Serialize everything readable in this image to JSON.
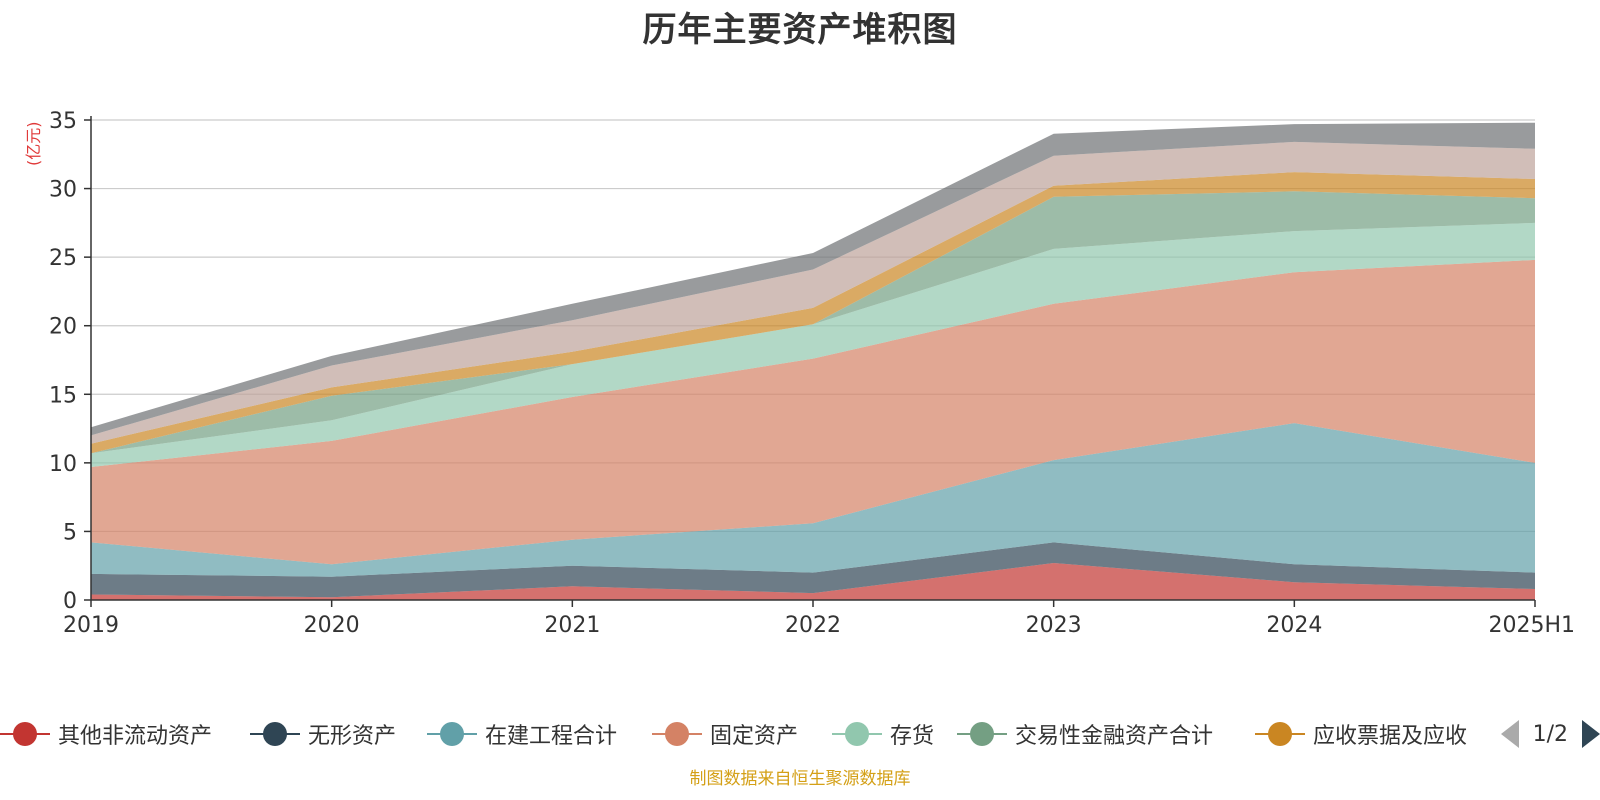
{
  "footer": "制图数据来自恒生聚源数据库",
  "legend_pager": "1/2",
  "chart_data": {
    "type": "area",
    "stacked": true,
    "title": "历年主要资产堆积图",
    "ylabel": "(亿元)",
    "ylim": [
      0,
      35
    ],
    "yticks": [
      0,
      5,
      10,
      15,
      20,
      25,
      30,
      35
    ],
    "grid": true,
    "legend_position": "bottom",
    "categories": [
      "2019",
      "2020",
      "2021",
      "2022",
      "2023",
      "2024",
      "2025H1"
    ],
    "series": [
      {
        "name": "其他非流动资产",
        "color": "#c23531",
        "values": [
          0.4,
          0.2,
          1.0,
          0.5,
          2.7,
          1.3,
          0.8
        ]
      },
      {
        "name": "无形资产",
        "color": "#2f4554",
        "values": [
          1.5,
          1.5,
          1.5,
          1.5,
          1.5,
          1.3,
          1.2
        ]
      },
      {
        "name": "在建工程合计",
        "color": "#61a0a8",
        "values": [
          2.3,
          0.9,
          1.9,
          3.6,
          6.0,
          10.3,
          8.0
        ]
      },
      {
        "name": "固定资产",
        "color": "#d48265",
        "values": [
          5.5,
          9.0,
          10.4,
          12.0,
          11.4,
          11.0,
          14.8
        ]
      },
      {
        "name": "存货",
        "color": "#91c7ae",
        "values": [
          1.0,
          1.5,
          2.4,
          2.5,
          4.0,
          3.0,
          2.7
        ]
      },
      {
        "name": "交易性金融资产合计",
        "color": "#749f83",
        "values": [
          0.0,
          1.8,
          0.0,
          0.0,
          3.8,
          2.9,
          1.8
        ]
      },
      {
        "name": "应收票据及应收",
        "color": "#ca8622",
        "values": [
          0.7,
          0.6,
          0.9,
          1.2,
          0.8,
          1.4,
          1.4
        ]
      },
      {
        "name": "",
        "color": "#bda29a",
        "values": [
          0.6,
          1.6,
          2.3,
          2.8,
          2.2,
          2.2,
          2.2
        ]
      },
      {
        "name": "",
        "color": "#6e7074",
        "values": [
          0.6,
          0.7,
          1.2,
          1.2,
          1.6,
          1.3,
          1.9
        ]
      }
    ]
  }
}
